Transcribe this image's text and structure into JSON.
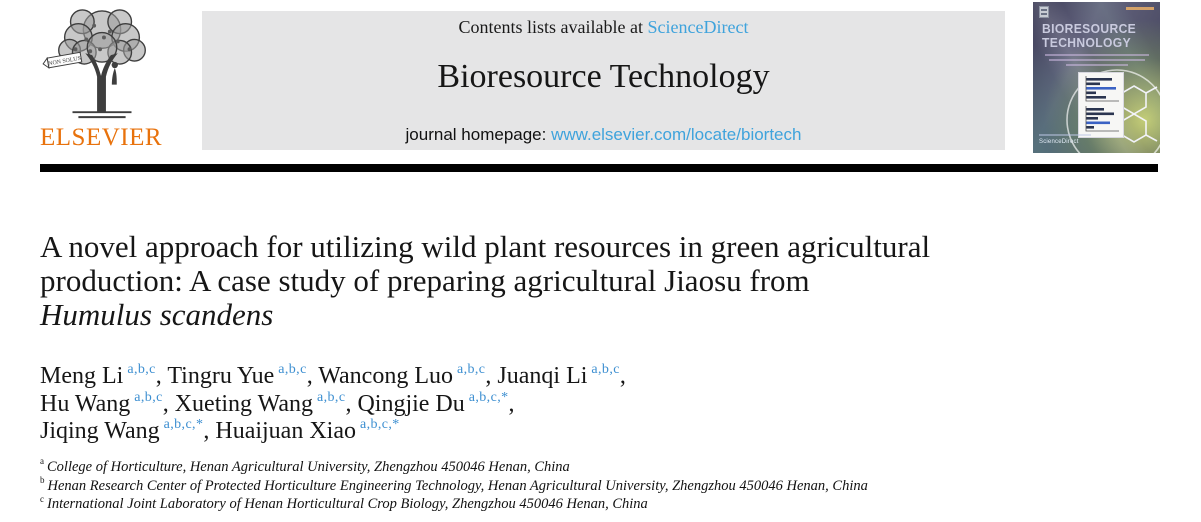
{
  "publisher": {
    "wordmark": "ELSEVIER",
    "motto": "NON SOLUS"
  },
  "banner": {
    "contents_prefix": "Contents lists available at ",
    "sciencedirect_link": "ScienceDirect",
    "journal_title": "Bioresource Technology",
    "homepage_prefix": "journal homepage: ",
    "homepage_url": "www.elsevier.com/locate/biortech"
  },
  "cover": {
    "title_line1": "BIORESOURCE",
    "title_line2": "TECHNOLOGY",
    "sciencedirect_label": "ScienceDirect"
  },
  "article": {
    "title_line1": "A novel approach for utilizing wild plant resources in green agricultural",
    "title_line2": "production: A case study of preparing agricultural Jiaosu from",
    "title_line3_italic": "Humulus scandens",
    "author_lines": [
      {
        "authors": [
          {
            "name": "Meng Li",
            "sup": "a,b,c"
          },
          {
            "name": "Tingru Yue",
            "sup": "a,b,c"
          },
          {
            "name": "Wancong Luo",
            "sup": "a,b,c"
          },
          {
            "name": "Juanqi Li",
            "sup": "a,b,c"
          }
        ],
        "trailing_comma": true
      },
      {
        "authors": [
          {
            "name": "Hu Wang",
            "sup": "a,b,c"
          },
          {
            "name": "Xueting Wang",
            "sup": "a,b,c"
          },
          {
            "name": "Qingjie Du",
            "sup": "a,b,c,*"
          }
        ],
        "trailing_comma": true
      },
      {
        "authors": [
          {
            "name": "Jiqing Wang",
            "sup": "a,b,c,*"
          },
          {
            "name": "Huaijuan Xiao",
            "sup": "a,b,c,*"
          }
        ],
        "trailing_comma": false
      }
    ],
    "affiliations": [
      {
        "marker": "a",
        "text": "College of Horticulture, Henan Agricultural University, Zhengzhou 450046 Henan, China"
      },
      {
        "marker": "b",
        "text": "Henan Research Center of Protected Horticulture Engineering Technology, Henan Agricultural University, Zhengzhou 450046 Henan, China"
      },
      {
        "marker": "c",
        "text": "International Joint Laboratory of Henan Horticultural Crop Biology, Zhengzhou 450046 Henan, China"
      }
    ]
  },
  "colors": {
    "link_blue": "#3fa3dc",
    "superscript_blue": "#3d8fd1",
    "elsevier_orange": "#e8720c",
    "banner_gray": "#e5e5e6",
    "text_black": "#1a1a1a"
  }
}
